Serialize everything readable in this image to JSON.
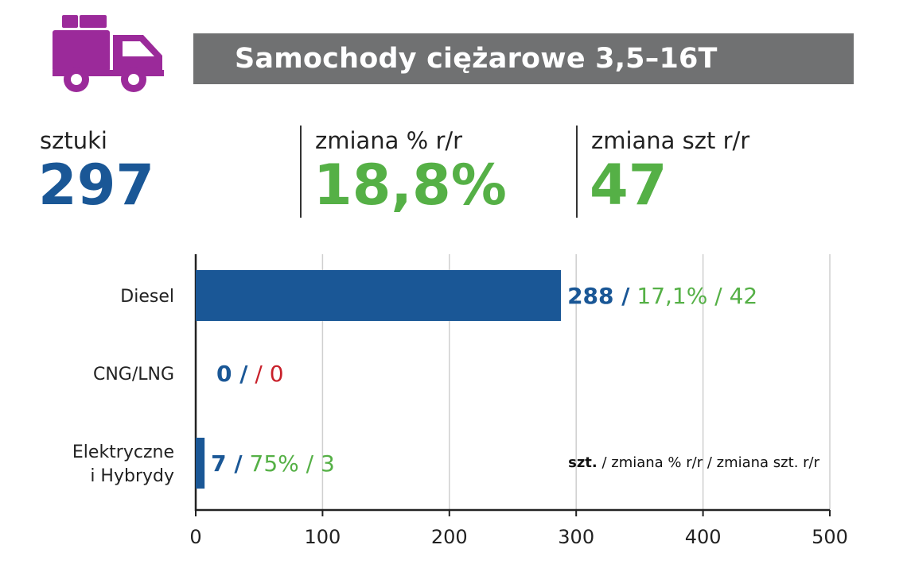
{
  "header": {
    "title": "Samochody ciężarowe 3,5–16T"
  },
  "stats": [
    {
      "label": "sztuki",
      "value": "297",
      "color": "#1a5796"
    },
    {
      "label": "zmiana % r/r",
      "value": "18,8%",
      "color": "#55b046"
    },
    {
      "label": "zmiana szt r/r",
      "value": "47",
      "color": "#55b046"
    }
  ],
  "icons": {
    "truck": "truck-icon",
    "truck_color": "#9b2a9a"
  },
  "chart_data": {
    "type": "bar",
    "orientation": "horizontal",
    "categories": [
      "Diesel",
      "CNG/LNG",
      "Elektryczne i Hybrydy"
    ],
    "category_lines": [
      [
        "Diesel"
      ],
      [
        "CNG/LNG"
      ],
      [
        "Elektryczne",
        "i Hybrydy"
      ]
    ],
    "values": [
      288,
      0,
      7
    ],
    "xlim": [
      0,
      500
    ],
    "xticks": [
      "0",
      "100",
      "200",
      "300",
      "400",
      "500"
    ],
    "bar_color": "#1a5796",
    "data_labels": [
      {
        "szt": "288",
        "pct": "17,1%",
        "diff": "42",
        "pct_color": "#55b046",
        "diff_color": "#55b046"
      },
      {
        "szt": "0",
        "pct": "",
        "diff": "0",
        "pct_color": "#55b046",
        "diff_color": "#c8202a"
      },
      {
        "szt": "7",
        "pct": "75%",
        "diff": "3",
        "pct_color": "#55b046",
        "diff_color": "#55b046"
      }
    ],
    "legend": {
      "bold": "szt.",
      "rest": " / zmiana % r/r / zmiana szt. r/r"
    },
    "grid": true
  }
}
